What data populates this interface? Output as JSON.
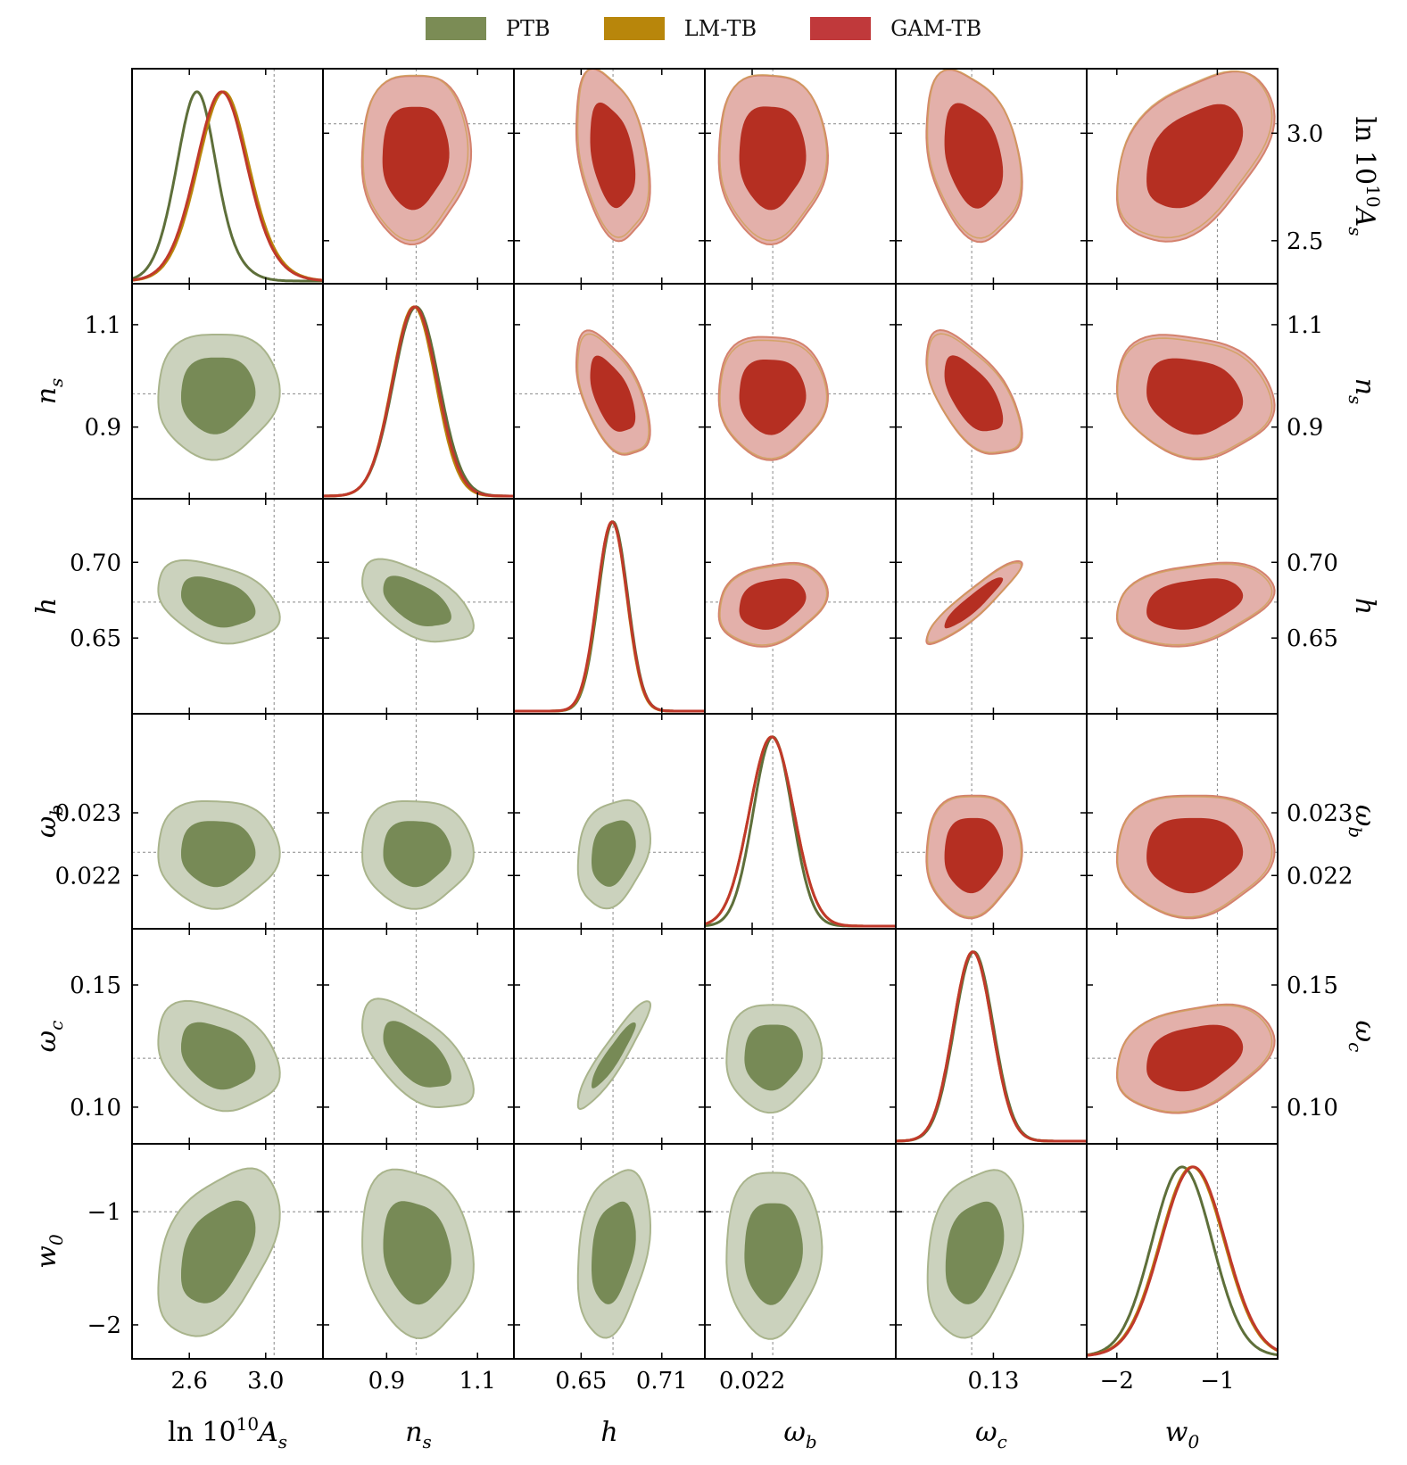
{
  "legend": [
    {
      "label": "PTB",
      "color": "#7b8c55"
    },
    {
      "label": "LM-TB",
      "color": "#b8860b"
    },
    {
      "label": "GAM-TB",
      "color": "#c0393b"
    }
  ],
  "colors": {
    "ptb_inner": "#778a56",
    "ptb_outer": "#cbd2bd",
    "ptb_edge": "#a9b48c",
    "gam_inner": "#b52f22",
    "gam_outer": "#e3b0aa",
    "gam_edge": "#d4826e",
    "lm_line": "#b8860b",
    "gam_line": "#c0392b",
    "ptb_line": "#5e6f3a",
    "guide": "#888888"
  },
  "chart_data": {
    "type": "corner",
    "title": "",
    "parameters": [
      {
        "name": "lnAs",
        "label": "ln 10",
        "sup": "10",
        "label_tail": "A",
        "sub": "s",
        "range": [
          2.3,
          3.3
        ],
        "fiducial": 3.044,
        "ticks": [
          2.6,
          3.0
        ],
        "tick_labels": [
          "2.6",
          "3.0"
        ],
        "row_ticks": [
          2.5,
          3.0
        ],
        "row_tick_labels": [
          "2.5",
          "3.0"
        ]
      },
      {
        "name": "ns",
        "label": "n",
        "sub": "s",
        "range": [
          0.76,
          1.18
        ],
        "fiducial": 0.9649,
        "ticks": [
          0.9,
          1.1
        ],
        "tick_labels": [
          "0.9",
          "1.1"
        ],
        "row_ticks": [
          0.9,
          1.1
        ],
        "row_tick_labels": [
          "0.9",
          "1.1"
        ]
      },
      {
        "name": "h",
        "label": "h",
        "range": [
          0.6,
          0.742
        ],
        "fiducial": 0.6737,
        "ticks": [
          0.65,
          0.71
        ],
        "tick_labels": [
          "0.65",
          "0.71"
        ],
        "row_ticks": [
          0.65,
          0.7
        ],
        "row_tick_labels": [
          "0.65",
          "0.70"
        ]
      },
      {
        "name": "omega_b",
        "label": "ω",
        "sub": "b",
        "range": [
          0.02115,
          0.02458
        ],
        "fiducial": 0.02237,
        "ticks": [
          0.022
        ],
        "tick_labels": [
          "0.022"
        ],
        "row_ticks": [
          0.022,
          0.023
        ],
        "row_tick_labels": [
          "0.022",
          "0.023"
        ]
      },
      {
        "name": "omega_c",
        "label": "ω",
        "sub": "c",
        "range": [
          0.085,
          0.173
        ],
        "fiducial": 0.12,
        "ticks": [
          0.13
        ],
        "tick_labels": [
          "0.13"
        ],
        "row_ticks": [
          0.1,
          0.15
        ],
        "row_tick_labels": [
          "0.10",
          "0.15"
        ]
      },
      {
        "name": "w0",
        "label": "w",
        "sub": "0",
        "range": [
          -2.3,
          -0.4
        ],
        "fiducial": -1.0,
        "ticks": [
          -2,
          -1
        ],
        "tick_labels": [
          "−2",
          "−1"
        ],
        "row_ticks": [
          -2,
          -1
        ],
        "row_tick_labels": [
          "−2",
          "−1"
        ]
      }
    ],
    "posteriors": {
      "lnAs": {
        "PTB": {
          "mean": 2.7,
          "sd": 0.13,
          "skew": 1.2
        },
        "LM-TB": {
          "mean": 2.85,
          "sd": 0.16,
          "skew": 1.0
        },
        "GAM-TB": {
          "mean": 2.84,
          "sd": 0.16,
          "skew": 1.0
        }
      },
      "ns": {
        "PTB": {
          "mean": 0.965,
          "sd": 0.05
        },
        "LM-TB": {
          "mean": 0.96,
          "sd": 0.048
        },
        "GAM-TB": {
          "mean": 0.962,
          "sd": 0.049
        }
      },
      "h": {
        "PTB": {
          "mean": 0.6737,
          "sd": 0.011
        },
        "LM-TB": {
          "mean": 0.673,
          "sd": 0.011
        },
        "GAM-TB": {
          "mean": 0.673,
          "sd": 0.0112
        }
      },
      "omega_b": {
        "PTB": {
          "mean": 0.02237,
          "sd": 0.00035
        },
        "LM-TB": {
          "mean": 0.02235,
          "sd": 0.0004
        },
        "GAM-TB": {
          "mean": 0.02235,
          "sd": 0.0004
        }
      },
      "omega_c": {
        "PTB": {
          "mean": 0.121,
          "sd": 0.009
        },
        "LM-TB": {
          "mean": 0.1205,
          "sd": 0.009
        },
        "GAM-TB": {
          "mean": 0.1205,
          "sd": 0.009
        }
      },
      "w0": {
        "PTB": {
          "mean": -1.35,
          "sd": 0.3
        },
        "LM-TB": {
          "mean": -1.25,
          "sd": 0.32
        },
        "GAM-TB": {
          "mean": -1.24,
          "sd": 0.32
        }
      }
    },
    "correlations": {
      "lnAs,ns": 0.05,
      "lnAs,h": -0.35,
      "lnAs,omega_b": 0.0,
      "lnAs,omega_c": -0.3,
      "lnAs,w0": 0.45,
      "ns,h": -0.55,
      "ns,omega_b": 0.0,
      "ns,omega_c": -0.6,
      "ns,w0": -0.15,
      "h,omega_b": 0.25,
      "h,omega_c": 0.92,
      "h,w0": 0.3,
      "omega_b,omega_c": 0.05,
      "omega_b,w0": 0.05,
      "omega_c,w0": 0.3
    }
  }
}
